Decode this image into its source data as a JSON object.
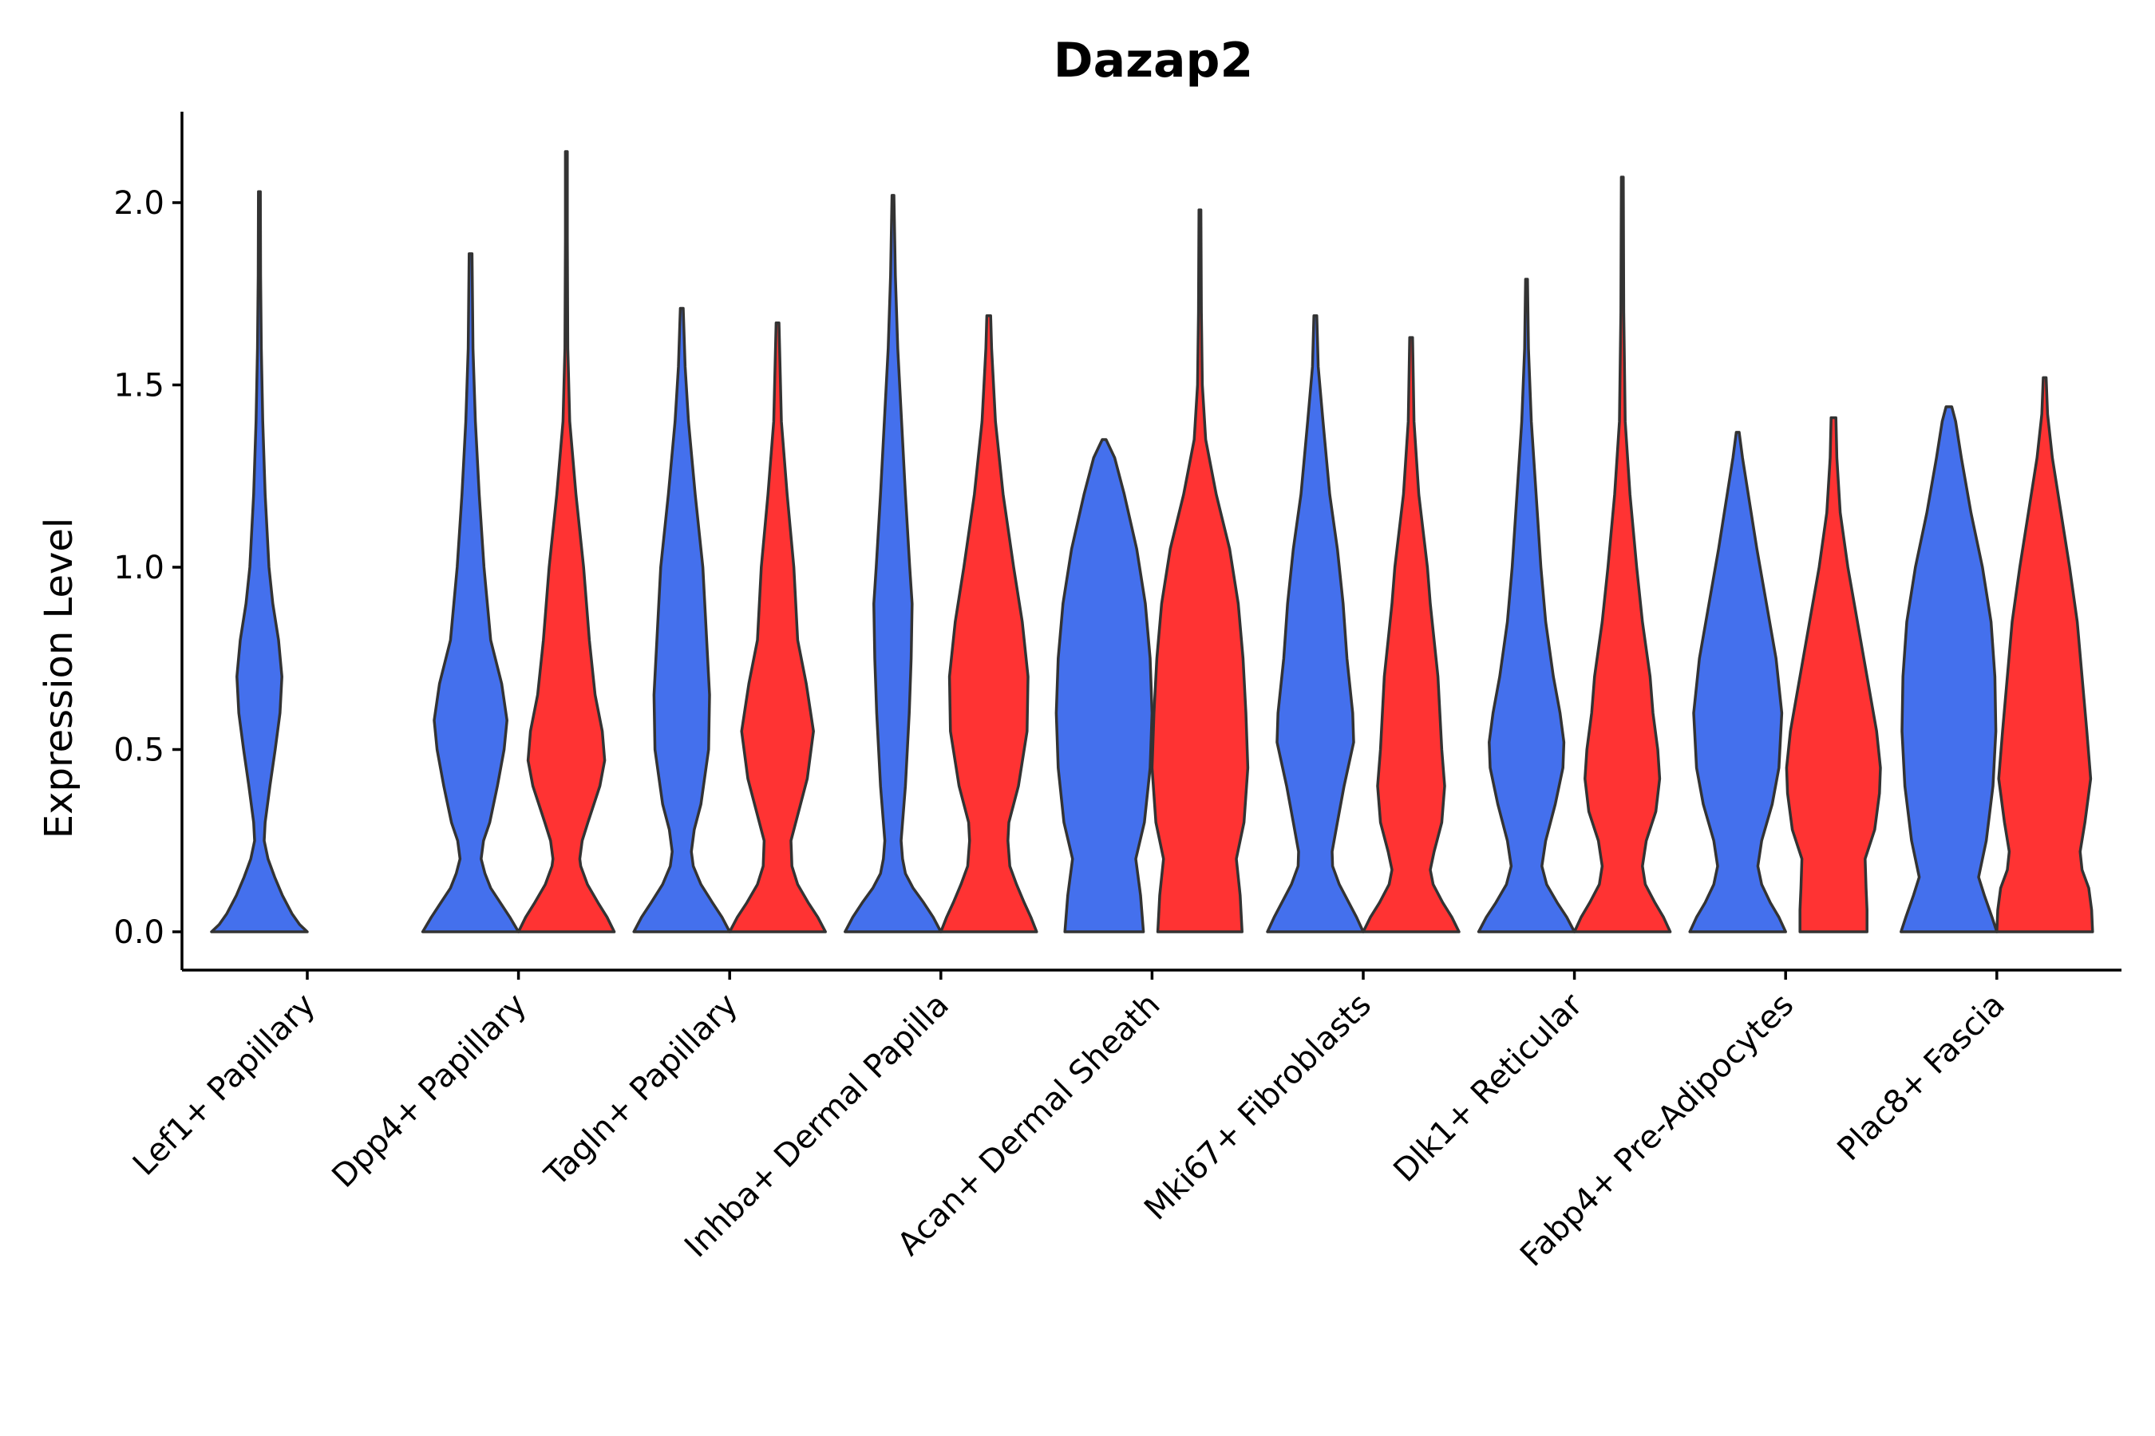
{
  "chart_data": {
    "type": "violin",
    "title": "Dazap2",
    "xlabel": "",
    "ylabel": "Expression Level",
    "ylim": [
      -0.11,
      2.25
    ],
    "yticks": [
      "0.0",
      "0.5",
      "1.0",
      "1.5",
      "2.0"
    ],
    "categories": [
      "Lef1+ Papillary",
      "Dpp4+ Papillary",
      "Tagln+ Papillary",
      "Inhba+ Dermal Papilla",
      "Acan+ Dermal Sheath",
      "Mki67+ Fibroblasts",
      "Dlk1+ Reticular",
      "Fabp4+ Pre-Adipocytes",
      "Plac8+ Fascia"
    ],
    "series_colors": [
      "#4470ED",
      "#FF3333"
    ],
    "violins": [
      {
        "category": "Lef1+ Papillary",
        "group": 1,
        "max": 2.03,
        "profile": [
          [
            0.0,
            1.0
          ],
          [
            0.02,
            0.84
          ],
          [
            0.05,
            0.68
          ],
          [
            0.1,
            0.48
          ],
          [
            0.15,
            0.32
          ],
          [
            0.2,
            0.18
          ],
          [
            0.25,
            0.1
          ],
          [
            0.3,
            0.12
          ],
          [
            0.4,
            0.22
          ],
          [
            0.5,
            0.33
          ],
          [
            0.6,
            0.43
          ],
          [
            0.7,
            0.47
          ],
          [
            0.8,
            0.4
          ],
          [
            0.9,
            0.28
          ],
          [
            1.0,
            0.2
          ],
          [
            1.2,
            0.12
          ],
          [
            1.4,
            0.07
          ],
          [
            1.6,
            0.04
          ],
          [
            1.8,
            0.025
          ],
          [
            2.03,
            0.02
          ]
        ]
      },
      {
        "category": "Dpp4+ Papillary",
        "group": 1,
        "max": 1.86,
        "profile": [
          [
            0.0,
            1.0
          ],
          [
            0.04,
            0.82
          ],
          [
            0.08,
            0.62
          ],
          [
            0.12,
            0.42
          ],
          [
            0.16,
            0.3
          ],
          [
            0.2,
            0.22
          ],
          [
            0.25,
            0.27
          ],
          [
            0.3,
            0.4
          ],
          [
            0.4,
            0.56
          ],
          [
            0.5,
            0.7
          ],
          [
            0.58,
            0.76
          ],
          [
            0.68,
            0.65
          ],
          [
            0.8,
            0.42
          ],
          [
            1.0,
            0.28
          ],
          [
            1.2,
            0.18
          ],
          [
            1.4,
            0.1
          ],
          [
            1.6,
            0.05
          ],
          [
            1.86,
            0.03
          ]
        ]
      },
      {
        "category": "Dpp4+ Papillary",
        "group": 2,
        "max": 2.14,
        "profile": [
          [
            0.0,
            1.0
          ],
          [
            0.04,
            0.85
          ],
          [
            0.08,
            0.66
          ],
          [
            0.13,
            0.44
          ],
          [
            0.18,
            0.3
          ],
          [
            0.2,
            0.28
          ],
          [
            0.25,
            0.33
          ],
          [
            0.3,
            0.45
          ],
          [
            0.4,
            0.7
          ],
          [
            0.47,
            0.8
          ],
          [
            0.55,
            0.75
          ],
          [
            0.65,
            0.6
          ],
          [
            0.8,
            0.48
          ],
          [
            1.0,
            0.36
          ],
          [
            1.2,
            0.2
          ],
          [
            1.4,
            0.07
          ],
          [
            1.6,
            0.03
          ],
          [
            1.9,
            0.02
          ],
          [
            2.14,
            0.02
          ]
        ]
      },
      {
        "category": "Tagln+ Papillary",
        "group": 1,
        "max": 1.71,
        "profile": [
          [
            0.0,
            1.0
          ],
          [
            0.04,
            0.84
          ],
          [
            0.08,
            0.64
          ],
          [
            0.13,
            0.4
          ],
          [
            0.18,
            0.24
          ],
          [
            0.22,
            0.2
          ],
          [
            0.28,
            0.26
          ],
          [
            0.35,
            0.4
          ],
          [
            0.5,
            0.56
          ],
          [
            0.65,
            0.58
          ],
          [
            0.8,
            0.52
          ],
          [
            1.0,
            0.44
          ],
          [
            1.2,
            0.28
          ],
          [
            1.4,
            0.14
          ],
          [
            1.55,
            0.07
          ],
          [
            1.71,
            0.03
          ]
        ]
      },
      {
        "category": "Tagln+ Papillary",
        "group": 2,
        "max": 1.67,
        "profile": [
          [
            0.0,
            1.0
          ],
          [
            0.04,
            0.84
          ],
          [
            0.08,
            0.64
          ],
          [
            0.13,
            0.42
          ],
          [
            0.18,
            0.3
          ],
          [
            0.25,
            0.28
          ],
          [
            0.32,
            0.42
          ],
          [
            0.42,
            0.62
          ],
          [
            0.55,
            0.75
          ],
          [
            0.68,
            0.6
          ],
          [
            0.8,
            0.42
          ],
          [
            0.9,
            0.38
          ],
          [
            1.0,
            0.34
          ],
          [
            1.2,
            0.2
          ],
          [
            1.4,
            0.08
          ],
          [
            1.67,
            0.03
          ]
        ]
      },
      {
        "category": "Inhba+ Dermal Papilla",
        "group": 1,
        "max": 2.02,
        "profile": [
          [
            0.0,
            1.0
          ],
          [
            0.04,
            0.84
          ],
          [
            0.08,
            0.64
          ],
          [
            0.12,
            0.42
          ],
          [
            0.16,
            0.26
          ],
          [
            0.2,
            0.2
          ],
          [
            0.25,
            0.17
          ],
          [
            0.3,
            0.2
          ],
          [
            0.4,
            0.26
          ],
          [
            0.5,
            0.3
          ],
          [
            0.6,
            0.34
          ],
          [
            0.75,
            0.38
          ],
          [
            0.9,
            0.4
          ],
          [
            1.0,
            0.35
          ],
          [
            1.2,
            0.26
          ],
          [
            1.4,
            0.18
          ],
          [
            1.6,
            0.1
          ],
          [
            1.8,
            0.05
          ],
          [
            2.02,
            0.02
          ]
        ]
      },
      {
        "category": "Inhba+ Dermal Papilla",
        "group": 2,
        "max": 1.69,
        "profile": [
          [
            0.0,
            1.0
          ],
          [
            0.04,
            0.88
          ],
          [
            0.08,
            0.74
          ],
          [
            0.13,
            0.58
          ],
          [
            0.18,
            0.44
          ],
          [
            0.25,
            0.4
          ],
          [
            0.3,
            0.42
          ],
          [
            0.4,
            0.62
          ],
          [
            0.55,
            0.8
          ],
          [
            0.7,
            0.82
          ],
          [
            0.85,
            0.7
          ],
          [
            1.0,
            0.52
          ],
          [
            1.2,
            0.3
          ],
          [
            1.4,
            0.14
          ],
          [
            1.6,
            0.06
          ],
          [
            1.69,
            0.04
          ]
        ]
      },
      {
        "category": "Acan+ Dermal Sheath",
        "group": 1,
        "max": 1.35,
        "profile": [
          [
            0.0,
            0.82
          ],
          [
            0.1,
            0.76
          ],
          [
            0.2,
            0.66
          ],
          [
            0.3,
            0.84
          ],
          [
            0.45,
            0.96
          ],
          [
            0.6,
            1.0
          ],
          [
            0.75,
            0.96
          ],
          [
            0.9,
            0.86
          ],
          [
            1.05,
            0.68
          ],
          [
            1.2,
            0.42
          ],
          [
            1.3,
            0.22
          ],
          [
            1.35,
            0.04
          ]
        ]
      },
      {
        "category": "Acan+ Dermal Sheath",
        "group": 2,
        "max": 1.98,
        "profile": [
          [
            0.0,
            0.88
          ],
          [
            0.1,
            0.84
          ],
          [
            0.2,
            0.76
          ],
          [
            0.3,
            0.92
          ],
          [
            0.45,
            1.0
          ],
          [
            0.6,
            0.96
          ],
          [
            0.75,
            0.9
          ],
          [
            0.9,
            0.8
          ],
          [
            1.05,
            0.62
          ],
          [
            1.2,
            0.34
          ],
          [
            1.35,
            0.12
          ],
          [
            1.5,
            0.05
          ],
          [
            1.7,
            0.03
          ],
          [
            1.98,
            0.02
          ]
        ]
      },
      {
        "category": "Mki67+ Fibroblasts",
        "group": 1,
        "max": 1.69,
        "profile": [
          [
            0.0,
            1.0
          ],
          [
            0.04,
            0.86
          ],
          [
            0.08,
            0.7
          ],
          [
            0.13,
            0.5
          ],
          [
            0.18,
            0.36
          ],
          [
            0.22,
            0.35
          ],
          [
            0.3,
            0.46
          ],
          [
            0.4,
            0.6
          ],
          [
            0.52,
            0.8
          ],
          [
            0.6,
            0.78
          ],
          [
            0.75,
            0.66
          ],
          [
            0.9,
            0.58
          ],
          [
            1.05,
            0.46
          ],
          [
            1.2,
            0.3
          ],
          [
            1.4,
            0.16
          ],
          [
            1.55,
            0.06
          ],
          [
            1.69,
            0.03
          ]
        ]
      },
      {
        "category": "Mki67+ Fibroblasts",
        "group": 2,
        "max": 1.63,
        "profile": [
          [
            0.0,
            1.0
          ],
          [
            0.04,
            0.85
          ],
          [
            0.08,
            0.66
          ],
          [
            0.13,
            0.46
          ],
          [
            0.17,
            0.4
          ],
          [
            0.22,
            0.48
          ],
          [
            0.3,
            0.64
          ],
          [
            0.4,
            0.7
          ],
          [
            0.5,
            0.64
          ],
          [
            0.6,
            0.6
          ],
          [
            0.7,
            0.56
          ],
          [
            0.8,
            0.48
          ],
          [
            0.9,
            0.4
          ],
          [
            1.0,
            0.34
          ],
          [
            1.2,
            0.16
          ],
          [
            1.4,
            0.06
          ],
          [
            1.63,
            0.03
          ]
        ]
      },
      {
        "category": "Dlk1+ Reticular",
        "group": 1,
        "max": 1.79,
        "profile": [
          [
            0.0,
            1.0
          ],
          [
            0.04,
            0.84
          ],
          [
            0.08,
            0.64
          ],
          [
            0.13,
            0.42
          ],
          [
            0.18,
            0.32
          ],
          [
            0.25,
            0.4
          ],
          [
            0.35,
            0.6
          ],
          [
            0.45,
            0.76
          ],
          [
            0.52,
            0.78
          ],
          [
            0.6,
            0.7
          ],
          [
            0.7,
            0.56
          ],
          [
            0.85,
            0.4
          ],
          [
            1.0,
            0.3
          ],
          [
            1.2,
            0.2
          ],
          [
            1.4,
            0.1
          ],
          [
            1.6,
            0.04
          ],
          [
            1.79,
            0.02
          ]
        ]
      },
      {
        "category": "Dlk1+ Reticular",
        "group": 2,
        "max": 2.07,
        "profile": [
          [
            0.0,
            1.0
          ],
          [
            0.04,
            0.86
          ],
          [
            0.08,
            0.68
          ],
          [
            0.13,
            0.48
          ],
          [
            0.18,
            0.42
          ],
          [
            0.25,
            0.5
          ],
          [
            0.33,
            0.7
          ],
          [
            0.42,
            0.78
          ],
          [
            0.5,
            0.74
          ],
          [
            0.6,
            0.64
          ],
          [
            0.7,
            0.58
          ],
          [
            0.85,
            0.42
          ],
          [
            1.0,
            0.3
          ],
          [
            1.2,
            0.16
          ],
          [
            1.4,
            0.06
          ],
          [
            1.7,
            0.03
          ],
          [
            2.07,
            0.02
          ]
        ]
      },
      {
        "category": "Fabp4+ Pre-Adipocytes",
        "group": 1,
        "max": 1.37,
        "profile": [
          [
            0.0,
            1.0
          ],
          [
            0.04,
            0.86
          ],
          [
            0.08,
            0.68
          ],
          [
            0.13,
            0.5
          ],
          [
            0.18,
            0.42
          ],
          [
            0.25,
            0.5
          ],
          [
            0.35,
            0.72
          ],
          [
            0.45,
            0.86
          ],
          [
            0.6,
            0.92
          ],
          [
            0.75,
            0.8
          ],
          [
            0.9,
            0.6
          ],
          [
            1.05,
            0.4
          ],
          [
            1.2,
            0.22
          ],
          [
            1.3,
            0.1
          ],
          [
            1.37,
            0.03
          ]
        ]
      },
      {
        "category": "Fabp4+ Pre-Adipocytes",
        "group": 2,
        "max": 1.41,
        "profile": [
          [
            0.0,
            0.7
          ],
          [
            0.06,
            0.7
          ],
          [
            0.12,
            0.68
          ],
          [
            0.2,
            0.66
          ],
          [
            0.28,
            0.86
          ],
          [
            0.38,
            0.96
          ],
          [
            0.45,
            0.98
          ],
          [
            0.55,
            0.9
          ],
          [
            0.7,
            0.7
          ],
          [
            0.85,
            0.5
          ],
          [
            1.0,
            0.3
          ],
          [
            1.15,
            0.14
          ],
          [
            1.3,
            0.07
          ],
          [
            1.41,
            0.05
          ]
        ]
      },
      {
        "category": "Plac8+ Fascia",
        "group": 1,
        "max": 1.44,
        "profile": [
          [
            0.0,
            1.0
          ],
          [
            0.04,
            0.9
          ],
          [
            0.1,
            0.74
          ],
          [
            0.15,
            0.62
          ],
          [
            0.25,
            0.78
          ],
          [
            0.4,
            0.92
          ],
          [
            0.55,
            0.98
          ],
          [
            0.7,
            0.96
          ],
          [
            0.85,
            0.88
          ],
          [
            1.0,
            0.7
          ],
          [
            1.15,
            0.46
          ],
          [
            1.3,
            0.26
          ],
          [
            1.4,
            0.14
          ],
          [
            1.44,
            0.06
          ]
        ]
      },
      {
        "category": "Plac8+ Fascia",
        "group": 2,
        "max": 1.52,
        "profile": [
          [
            0.0,
            1.0
          ],
          [
            0.06,
            0.98
          ],
          [
            0.12,
            0.92
          ],
          [
            0.17,
            0.78
          ],
          [
            0.22,
            0.74
          ],
          [
            0.3,
            0.84
          ],
          [
            0.42,
            0.96
          ],
          [
            0.55,
            0.88
          ],
          [
            0.7,
            0.78
          ],
          [
            0.85,
            0.68
          ],
          [
            1.0,
            0.52
          ],
          [
            1.15,
            0.34
          ],
          [
            1.3,
            0.16
          ],
          [
            1.42,
            0.06
          ],
          [
            1.52,
            0.03
          ]
        ]
      }
    ]
  }
}
